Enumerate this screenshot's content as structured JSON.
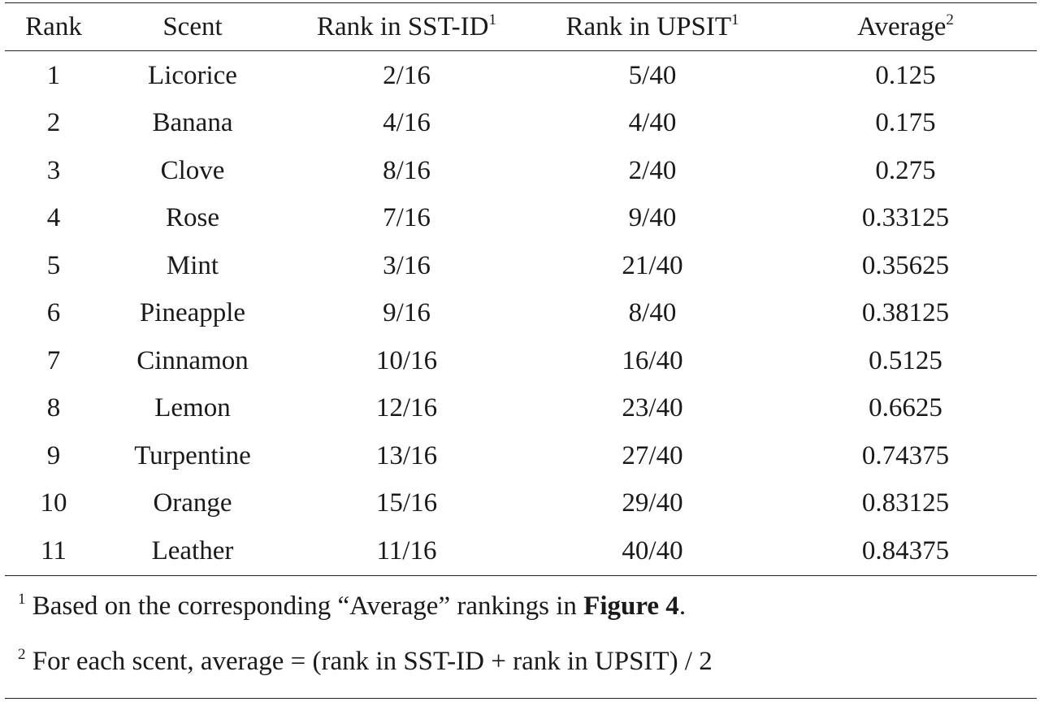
{
  "table": {
    "headers": [
      {
        "text": "Rank",
        "sup": ""
      },
      {
        "text": "Scent",
        "sup": ""
      },
      {
        "text": "Rank in SST-ID",
        "sup": "1"
      },
      {
        "text": "Rank in UPSIT",
        "sup": "1"
      },
      {
        "text": "Average",
        "sup": "2"
      }
    ],
    "rows": [
      [
        "1",
        "Licorice",
        "2/16",
        "5/40",
        "0.125"
      ],
      [
        "2",
        "Banana",
        "4/16",
        "4/40",
        "0.175"
      ],
      [
        "3",
        "Clove",
        "8/16",
        "2/40",
        "0.275"
      ],
      [
        "4",
        "Rose",
        "7/16",
        "9/40",
        "0.33125"
      ],
      [
        "5",
        "Mint",
        "3/16",
        "21/40",
        "0.35625"
      ],
      [
        "6",
        "Pineapple",
        "9/16",
        "8/40",
        "0.38125"
      ],
      [
        "7",
        "Cinnamon",
        "10/16",
        "16/40",
        "0.5125"
      ],
      [
        "8",
        "Lemon",
        "12/16",
        "23/40",
        "0.6625"
      ],
      [
        "9",
        "Turpentine",
        "13/16",
        "27/40",
        "0.74375"
      ],
      [
        "10",
        "Orange",
        "15/16",
        "29/40",
        "0.83125"
      ],
      [
        "11",
        "Leather",
        "11/16",
        "40/40",
        "0.84375"
      ]
    ]
  },
  "footnotes": [
    {
      "marker": "1",
      "text": " Based on the corresponding “Average” rankings in ",
      "bold": "Figure 4",
      "after": "."
    },
    {
      "marker": "2",
      "text": " For each scent, average = (rank in SST-ID + rank in UPSIT) / 2",
      "bold": "",
      "after": ""
    }
  ]
}
